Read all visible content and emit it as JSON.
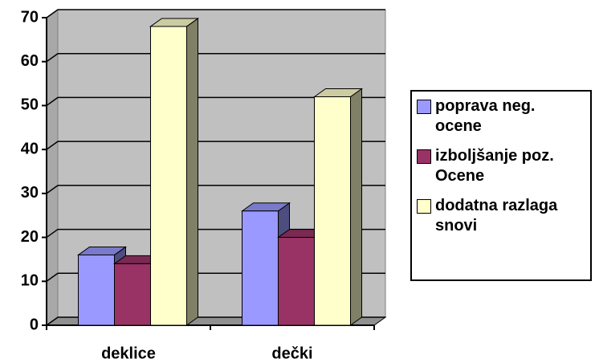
{
  "chart_data": {
    "type": "bar3d",
    "categories": [
      "deklice",
      "dečki"
    ],
    "series": [
      {
        "name": "poprava neg. ocene",
        "color": "#9999ff",
        "values": [
          16,
          26
        ]
      },
      {
        "name": "izboljšanje poz. Ocene",
        "color": "#993366",
        "values": [
          14,
          20
        ]
      },
      {
        "name": "dodatna razlaga snovi",
        "color": "#ffffcc",
        "values": [
          68,
          52
        ]
      }
    ],
    "ylim": [
      0,
      70
    ],
    "yticks": [
      0,
      10,
      20,
      30,
      40,
      50,
      60,
      70
    ],
    "grid": true,
    "legend": "right"
  }
}
